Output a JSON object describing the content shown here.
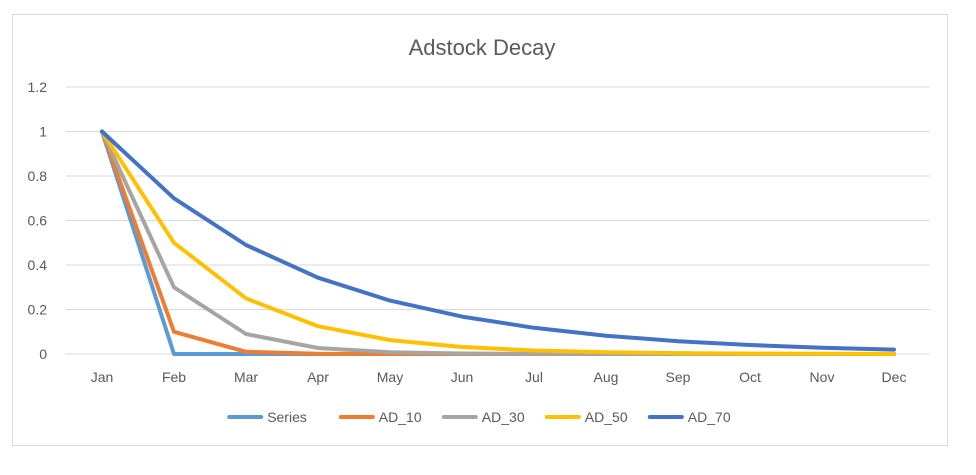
{
  "chart_data": {
    "type": "line",
    "title": "Adstock Decay",
    "xlabel": "",
    "ylabel": "",
    "categories": [
      "Jan",
      "Feb",
      "Mar",
      "Apr",
      "May",
      "Jun",
      "Jul",
      "Aug",
      "Sep",
      "Oct",
      "Nov",
      "Dec"
    ],
    "ylim": [
      0,
      1.2
    ],
    "yticks": [
      "0",
      "0.2",
      "0.4",
      "0.6",
      "0.8",
      "1",
      "1.2"
    ],
    "grid": true,
    "legend_position": "bottom",
    "series": [
      {
        "name": "Series",
        "color": "#5b9bd5",
        "values": [
          1,
          0,
          0,
          0,
          0,
          0,
          0,
          0,
          0,
          0,
          0,
          0
        ]
      },
      {
        "name": "AD_10",
        "color": "#ed7d31",
        "values": [
          1,
          0.1,
          0.01,
          0.001,
          0.0001,
          0,
          0,
          0,
          0,
          0,
          0,
          0
        ]
      },
      {
        "name": "AD_30",
        "color": "#a5a5a5",
        "values": [
          1,
          0.3,
          0.09,
          0.027,
          0.0081,
          0.0024,
          0.0007,
          0.0002,
          0.0001,
          0,
          0,
          0
        ]
      },
      {
        "name": "AD_50",
        "color": "#ffc000",
        "values": [
          1,
          0.5,
          0.25,
          0.125,
          0.0625,
          0.0313,
          0.0156,
          0.0078,
          0.0039,
          0.002,
          0.001,
          0.0005
        ]
      },
      {
        "name": "AD_70",
        "color": "#4472c4",
        "values": [
          1,
          0.7,
          0.49,
          0.343,
          0.2401,
          0.1681,
          0.1176,
          0.0824,
          0.0576,
          0.0404,
          0.0282,
          0.0198
        ]
      }
    ]
  }
}
